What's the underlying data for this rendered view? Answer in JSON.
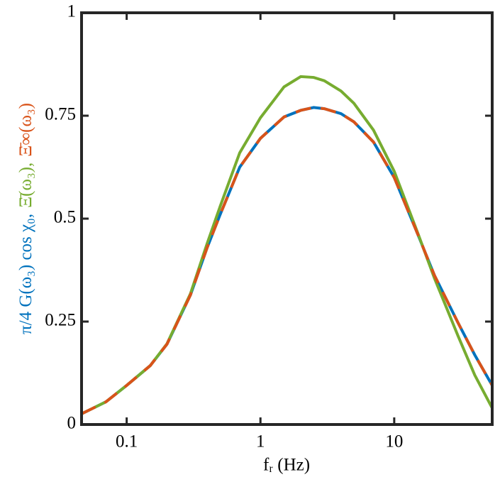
{
  "chart_data": {
    "type": "line",
    "x_label": "fᵣ (Hz)",
    "xscale": "log",
    "x": [
      0.046,
      0.07,
      0.1,
      0.15,
      0.2,
      0.3,
      0.4,
      0.5,
      0.7,
      1,
      1.5,
      2,
      2.5,
      3,
      4,
      5,
      7,
      10,
      15,
      20,
      30,
      40,
      54
    ],
    "series": [
      {
        "name": "π/4 G(ω₃) cos χ₀,",
        "color": "#0072BD",
        "dashed": false,
        "values": [
          0.026,
          0.055,
          0.095,
          0.143,
          0.195,
          0.315,
          0.43,
          0.51,
          0.625,
          0.695,
          0.747,
          0.763,
          0.77,
          0.767,
          0.755,
          0.735,
          0.686,
          0.6,
          0.462,
          0.362,
          0.247,
          0.169,
          0.095
        ]
      },
      {
        "name": "Ξ̄(ω₃),",
        "color": "#77AC30",
        "dashed": false,
        "values": [
          0.026,
          0.055,
          0.095,
          0.143,
          0.196,
          0.318,
          0.44,
          0.53,
          0.66,
          0.745,
          0.82,
          0.845,
          0.843,
          0.835,
          0.81,
          0.78,
          0.715,
          0.615,
          0.465,
          0.355,
          0.215,
          0.12,
          0.04
        ]
      },
      {
        "name": "Ξ̄∞(ω₃)",
        "color": "#D95319",
        "dashed": true,
        "values": [
          0.026,
          0.055,
          0.095,
          0.143,
          0.195,
          0.315,
          0.43,
          0.51,
          0.625,
          0.695,
          0.747,
          0.763,
          0.77,
          0.767,
          0.755,
          0.735,
          0.686,
          0.6,
          0.462,
          0.362,
          0.247,
          0.169,
          0.095
        ]
      }
    ],
    "xlim": [
      0.046,
      54
    ],
    "xticks": [
      0.1,
      1,
      10
    ],
    "ylim": [
      0,
      1
    ],
    "yticks": [
      0,
      0.25,
      0.5,
      0.75,
      1
    ]
  }
}
